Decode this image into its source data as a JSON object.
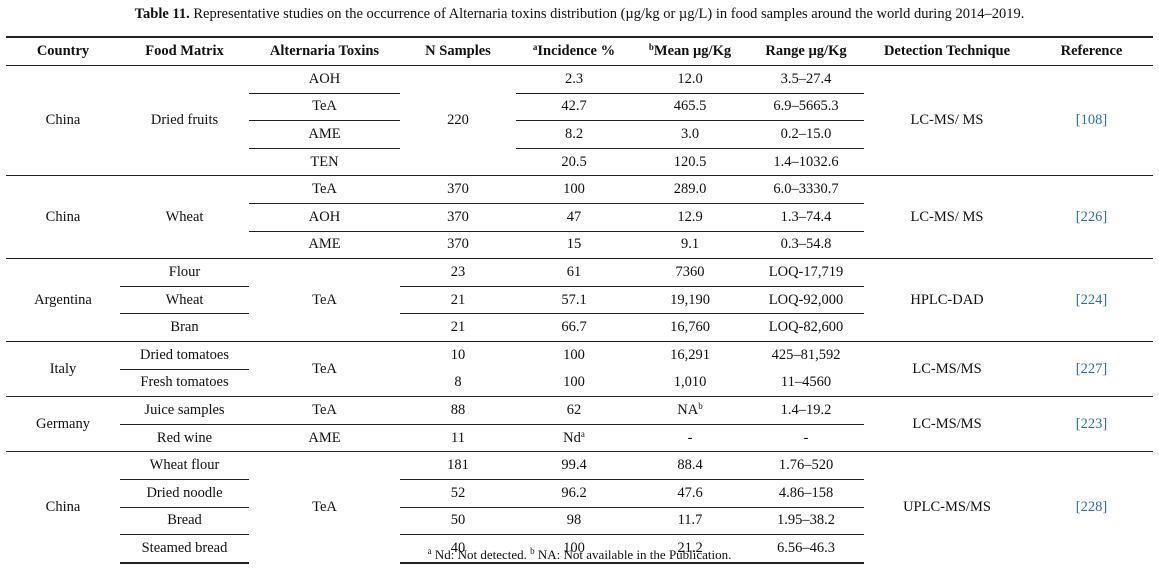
{
  "caption": {
    "label": "Table 11.",
    "text": "Representative studies on the occurrence of Alternaria toxins distribution (µg/kg or µg/L) in food samples around the world during 2014–2019."
  },
  "headers": {
    "country": "Country",
    "matrix": "Food Matrix",
    "toxins": "Alternaria Toxins",
    "samples": "N Samples",
    "incidence_sup": "a",
    "incidence": "Incidence %",
    "mean_sup": "b",
    "mean": "Mean µg/Kg",
    "range": "Range µg/Kg",
    "technique": "Detection Technique",
    "reference": "Reference"
  },
  "groups": [
    {
      "country": "China",
      "matrix": "Dried fruits",
      "samples": "220",
      "technique": "LC-MS/ MS",
      "reference": "[108]",
      "rows": [
        {
          "toxin": "AOH",
          "incidence": "2.3",
          "mean": "12.0",
          "range": "3.5–27.4"
        },
        {
          "toxin": "TeA",
          "incidence": "42.7",
          "mean": "465.5",
          "range": "6.9–5665.3"
        },
        {
          "toxin": "AME",
          "incidence": "8.2",
          "mean": "3.0",
          "range": "0.2–15.0"
        },
        {
          "toxin": "TEN",
          "incidence": "20.5",
          "mean": "120.5",
          "range": "1.4–1032.6"
        }
      ]
    },
    {
      "country": "China",
      "matrix": "Wheat",
      "technique": "LC-MS/ MS",
      "reference": "[226]",
      "rows": [
        {
          "toxin": "TeA",
          "samples": "370",
          "incidence": "100",
          "mean": "289.0",
          "range": "6.0–3330.7"
        },
        {
          "toxin": "AOH",
          "samples": "370",
          "incidence": "47",
          "mean": "12.9",
          "range": "1.3–74.4"
        },
        {
          "toxin": "AME",
          "samples": "370",
          "incidence": "15",
          "mean": "9.1",
          "range": "0.3–54.8"
        }
      ]
    },
    {
      "country": "Argentina",
      "toxin": "TeA",
      "technique": "HPLC-DAD",
      "reference": "[224]",
      "rows": [
        {
          "matrix": "Flour",
          "samples": "23",
          "incidence": "61",
          "mean": "7360",
          "range": "LOQ-17,719"
        },
        {
          "matrix": "Wheat",
          "samples": "21",
          "incidence": "57.1",
          "mean": "19,190",
          "range": "LOQ-92,000"
        },
        {
          "matrix": "Bran",
          "samples": "21",
          "incidence": "66.7",
          "mean": "16,760",
          "range": "LOQ-82,600"
        }
      ]
    },
    {
      "country": "Italy",
      "toxin": "TeA",
      "technique": "LC-MS/MS",
      "reference": "[227]",
      "rows": [
        {
          "matrix": "Dried tomatoes",
          "samples": "10",
          "incidence": "100",
          "mean": "16,291",
          "range": "425–81,592"
        },
        {
          "matrix": "Fresh tomatoes",
          "samples": "8",
          "incidence": "100",
          "mean": "1,010",
          "range": "11–4560"
        }
      ]
    },
    {
      "country": "Germany",
      "technique": "LC-MS/MS",
      "reference": "[223]",
      "rows": [
        {
          "matrix": "Juice samples",
          "toxin": "TeA",
          "samples": "88",
          "incidence": "62",
          "mean": "NA",
          "mean_sup": "b",
          "range": "1.4–19.2"
        },
        {
          "matrix": "Red wine",
          "toxin": "AME",
          "samples": "11",
          "incidence": "Nd",
          "incidence_sup": "a",
          "mean": "-",
          "range": "-"
        }
      ]
    },
    {
      "country": "China",
      "toxin": "TeA",
      "technique": "UPLC-MS/MS",
      "reference": "[228]",
      "rows": [
        {
          "matrix": "Wheat flour",
          "samples": "181",
          "incidence": "99.4",
          "mean": "88.4",
          "range": "1.76–520"
        },
        {
          "matrix": "Dried noodle",
          "samples": "52",
          "incidence": "96.2",
          "mean": "47.6",
          "range": "4.86–158"
        },
        {
          "matrix": "Bread",
          "samples": "50",
          "incidence": "98",
          "mean": "11.7",
          "range": "1.95–38.2"
        },
        {
          "matrix": "Steamed bread",
          "samples": "40",
          "incidence": "100",
          "mean": "21.2",
          "range": "6.56–46.3"
        }
      ]
    }
  ],
  "footnote": {
    "sup_a": "a",
    "text_a": "Nd: Not detected.",
    "sup_b": "b",
    "text_b": "NA: Not available in the Publication."
  }
}
